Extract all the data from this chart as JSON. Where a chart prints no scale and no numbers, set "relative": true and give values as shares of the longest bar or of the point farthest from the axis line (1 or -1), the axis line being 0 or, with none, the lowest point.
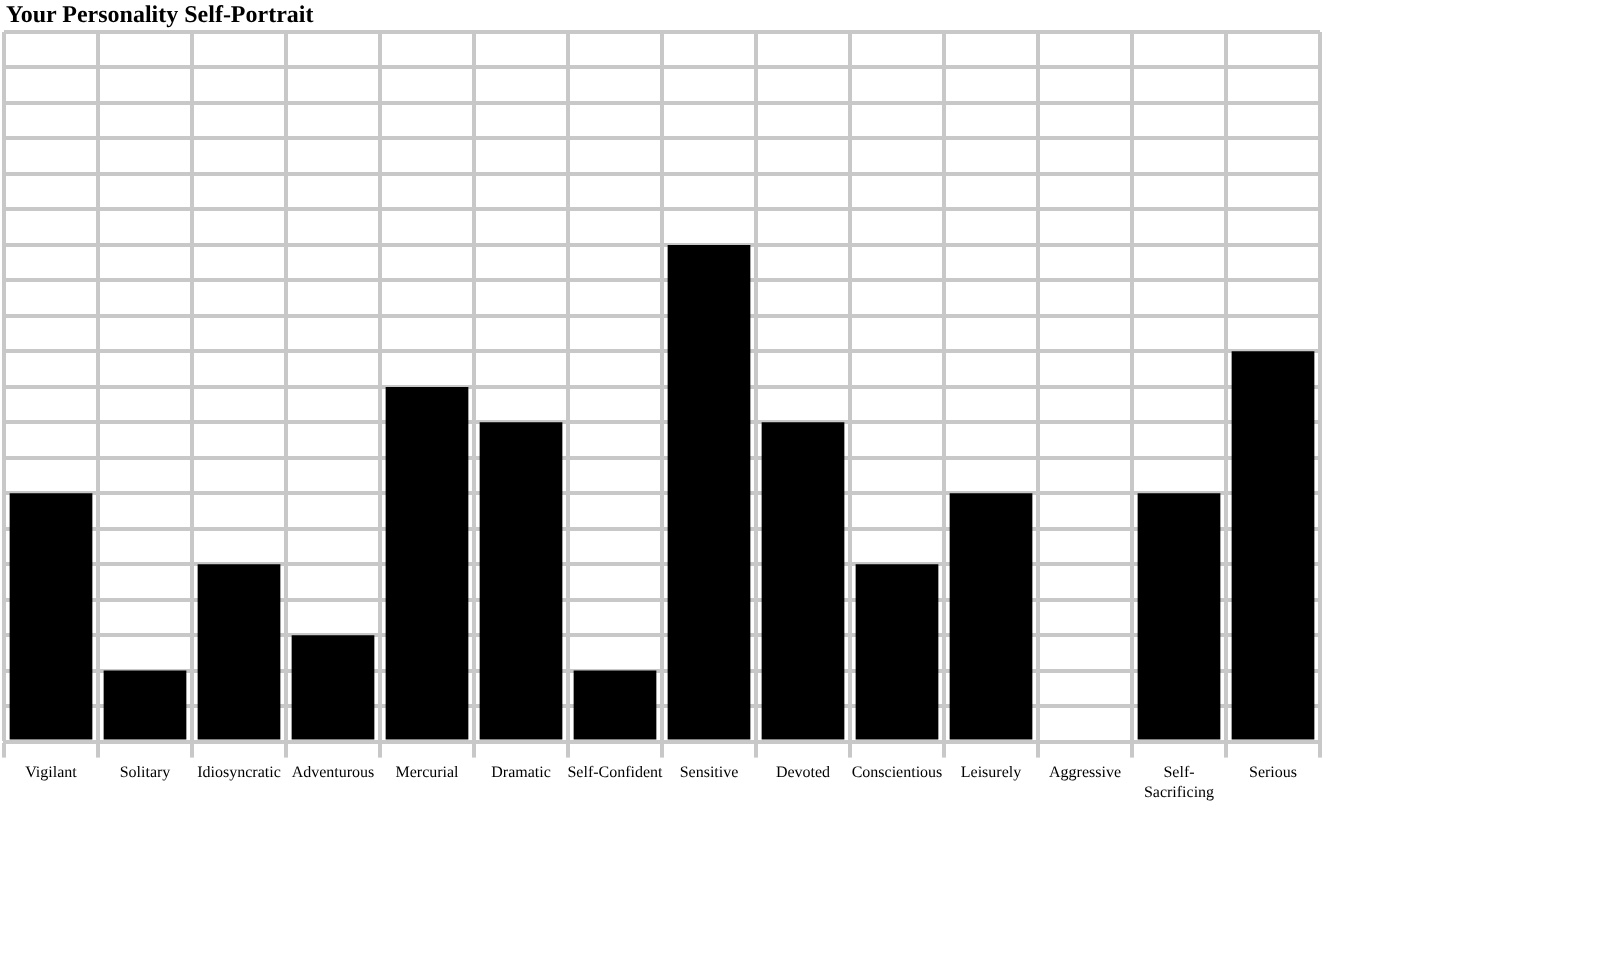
{
  "chart_data": {
    "type": "bar",
    "title": "Your Personality Self-Portrait",
    "relative": true,
    "categories": [
      "Vigilant",
      "Solitary",
      "Idiosyncratic",
      "Adventurous",
      "Mercurial",
      "Dramatic",
      "Self-Confident",
      "Sensitive",
      "Devoted",
      "Conscientious",
      "Leisurely",
      "Aggressive",
      "Self-Sacrificing",
      "Serious"
    ],
    "values": [
      0.5,
      0.143,
      0.357,
      0.214,
      0.714,
      0.643,
      0.143,
      1,
      0.643,
      0.357,
      0.5,
      0,
      0.5,
      0.786
    ],
    "color": "#000000",
    "grid": true,
    "legend": false
  }
}
